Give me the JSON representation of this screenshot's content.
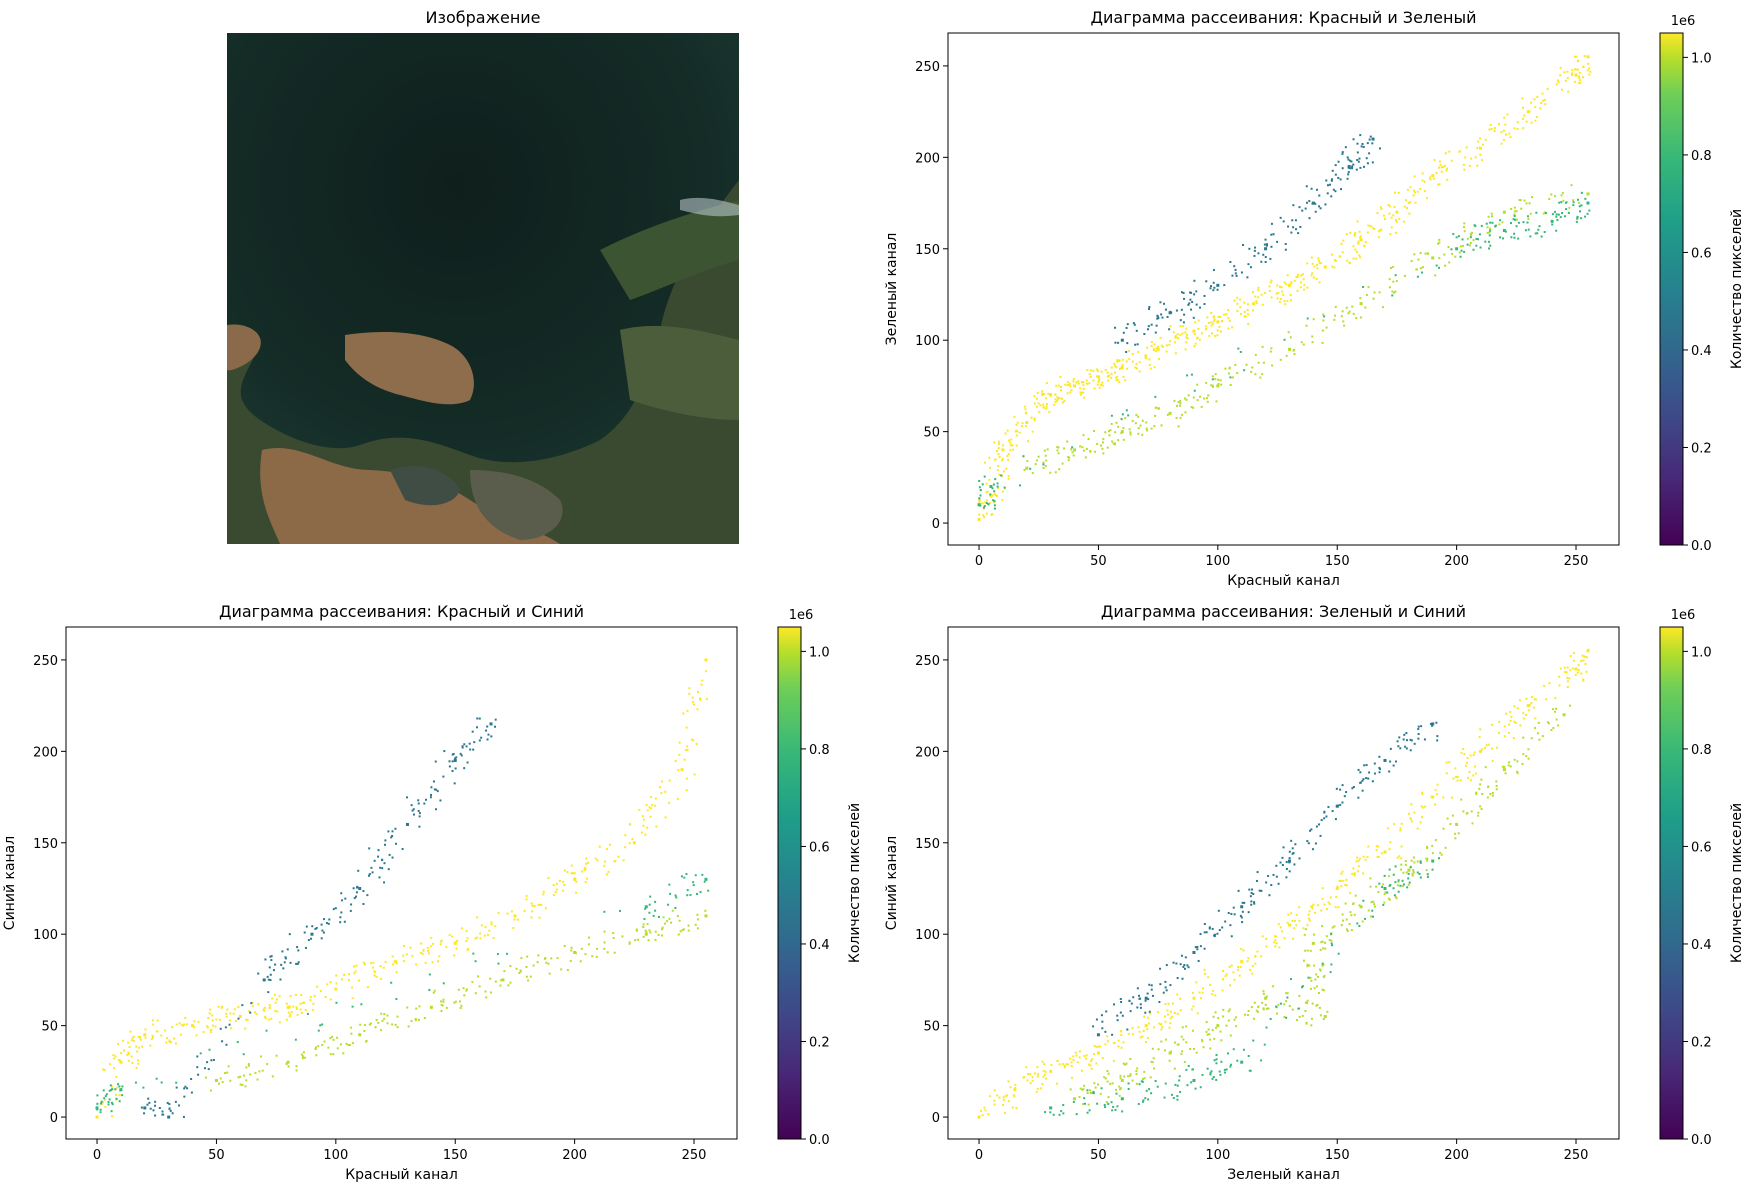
{
  "image_panel": {
    "title": "Изображение"
  },
  "colorbar": {
    "label": "Количество пикселей",
    "ticks": [
      "0.0",
      "0.2",
      "0.4",
      "0.6",
      "0.8",
      "1.0"
    ],
    "offset_text": "1e6",
    "range": [
      0,
      1050000
    ],
    "colormap": [
      "#440154",
      "#3b528b",
      "#21918c",
      "#5ec962",
      "#fde725"
    ]
  },
  "chart_data": [
    {
      "type": "scatter",
      "title": "Диаграмма рассеивания: Красный и Зеленый",
      "xlabel": "Красный канал",
      "ylabel": "Зеленый канал",
      "xlim": [
        -13,
        268
      ],
      "ylim": [
        -12,
        268
      ],
      "xticks": [
        0,
        50,
        100,
        150,
        200,
        250
      ],
      "yticks": [
        0,
        50,
        100,
        150,
        200,
        250
      ],
      "grid": false,
      "series": [
        {
          "color_value": 0.95,
          "color": "#fde725",
          "points": [
            [
              0,
              2
            ],
            [
              5,
              15
            ],
            [
              10,
              40
            ],
            [
              20,
              55
            ],
            [
              30,
              70
            ],
            [
              40,
              75
            ],
            [
              50,
              80
            ],
            [
              60,
              85
            ],
            [
              75,
              95
            ],
            [
              90,
              105
            ],
            [
              100,
              110
            ],
            [
              115,
              120
            ],
            [
              130,
              130
            ],
            [
              145,
              140
            ],
            [
              160,
              155
            ],
            [
              175,
              170
            ],
            [
              190,
              190
            ],
            [
              210,
              205
            ],
            [
              230,
              225
            ],
            [
              250,
              245
            ],
            [
              255,
              255
            ]
          ]
        },
        {
          "color_value": 0.8,
          "color": "#b5de2b",
          "points": [
            [
              20,
              30
            ],
            [
              40,
              40
            ],
            [
              60,
              50
            ],
            [
              80,
              60
            ],
            [
              100,
              75
            ],
            [
              130,
              95
            ],
            [
              160,
              120
            ],
            [
              190,
              145
            ],
            [
              220,
              170
            ],
            [
              255,
              180
            ]
          ]
        },
        {
          "color_value": 0.65,
          "color": "#35b779",
          "points": [
            [
              0,
              10
            ],
            [
              5,
              20
            ],
            [
              200,
              150
            ],
            [
              220,
              160
            ],
            [
              240,
              165
            ],
            [
              255,
              175
            ]
          ]
        },
        {
          "color_value": 0.35,
          "color": "#2a788e",
          "points": [
            [
              60,
              100
            ],
            [
              80,
              115
            ],
            [
              100,
              130
            ],
            [
              120,
              150
            ],
            [
              140,
              175
            ],
            [
              155,
              195
            ],
            [
              165,
              210
            ]
          ]
        }
      ]
    },
    {
      "type": "scatter",
      "title": "Диаграмма рассеивания: Красный и Синий",
      "xlabel": "Красный канал",
      "ylabel": "Синий канал",
      "xlim": [
        -13,
        268
      ],
      "ylim": [
        -12,
        268
      ],
      "xticks": [
        0,
        50,
        100,
        150,
        200,
        250
      ],
      "yticks": [
        0,
        50,
        100,
        150,
        200,
        250
      ],
      "grid": false,
      "series": [
        {
          "color_value": 0.95,
          "color": "#fde725",
          "points": [
            [
              0,
              0
            ],
            [
              10,
              30
            ],
            [
              20,
              45
            ],
            [
              40,
              50
            ],
            [
              60,
              55
            ],
            [
              80,
              60
            ],
            [
              100,
              70
            ],
            [
              125,
              85
            ],
            [
              150,
              95
            ],
            [
              175,
              110
            ],
            [
              200,
              130
            ],
            [
              225,
              150
            ],
            [
              245,
              190
            ],
            [
              255,
              250
            ]
          ]
        },
        {
          "color_value": 0.8,
          "color": "#b5de2b",
          "points": [
            [
              50,
              20
            ],
            [
              80,
              30
            ],
            [
              110,
              45
            ],
            [
              140,
              60
            ],
            [
              170,
              75
            ],
            [
              200,
              90
            ],
            [
              230,
              100
            ],
            [
              255,
              110
            ]
          ]
        },
        {
          "color_value": 0.65,
          "color": "#35b779",
          "points": [
            [
              0,
              5
            ],
            [
              10,
              15
            ],
            [
              230,
              115
            ],
            [
              255,
              130
            ]
          ]
        },
        {
          "color_value": 0.35,
          "color": "#2a788e",
          "points": [
            [
              20,
              5
            ],
            [
              30,
              0
            ],
            [
              70,
              75
            ],
            [
              90,
              100
            ],
            [
              110,
              125
            ],
            [
              130,
              160
            ],
            [
              150,
              195
            ],
            [
              165,
              215
            ]
          ]
        }
      ]
    },
    {
      "type": "scatter",
      "title": "Диаграмма рассеивания: Зеленый и Синий",
      "xlabel": "Зеленый канал",
      "ylabel": "Синий канал",
      "xlim": [
        -13,
        268
      ],
      "ylim": [
        -12,
        268
      ],
      "xticks": [
        0,
        50,
        100,
        150,
        200,
        250
      ],
      "yticks": [
        0,
        50,
        100,
        150,
        200,
        250
      ],
      "grid": false,
      "series": [
        {
          "color_value": 0.95,
          "color": "#fde725",
          "points": [
            [
              0,
              0
            ],
            [
              15,
              15
            ],
            [
              30,
              25
            ],
            [
              50,
              35
            ],
            [
              70,
              50
            ],
            [
              90,
              65
            ],
            [
              110,
              85
            ],
            [
              130,
              105
            ],
            [
              150,
              125
            ],
            [
              170,
              145
            ],
            [
              190,
              175
            ],
            [
              210,
              200
            ],
            [
              230,
              225
            ],
            [
              250,
              245
            ],
            [
              255,
              255
            ]
          ]
        },
        {
          "color_value": 0.8,
          "color": "#b5de2b",
          "points": [
            [
              40,
              10
            ],
            [
              60,
              20
            ],
            [
              80,
              35
            ],
            [
              100,
              50
            ],
            [
              120,
              65
            ],
            [
              145,
              55
            ],
            [
              140,
              95
            ],
            [
              160,
              115
            ],
            [
              180,
              135
            ],
            [
              200,
              160
            ],
            [
              220,
              190
            ],
            [
              245,
              220
            ]
          ]
        },
        {
          "color_value": 0.65,
          "color": "#35b779",
          "points": [
            [
              30,
              5
            ],
            [
              60,
              10
            ],
            [
              90,
              20
            ],
            [
              110,
              30
            ],
            [
              170,
              125
            ],
            [
              190,
              140
            ]
          ]
        },
        {
          "color_value": 0.35,
          "color": "#2a788e",
          "points": [
            [
              50,
              45
            ],
            [
              70,
              65
            ],
            [
              90,
              90
            ],
            [
              110,
              115
            ],
            [
              130,
              140
            ],
            [
              150,
              170
            ],
            [
              170,
              195
            ],
            [
              190,
              215
            ]
          ]
        }
      ]
    }
  ]
}
